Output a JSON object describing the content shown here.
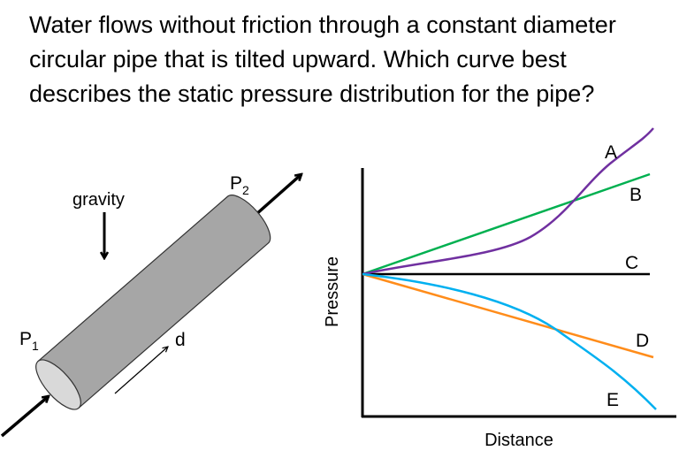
{
  "question": "Water flows without friction through a constant diameter circular pipe that is tilted upward. Which curve best describes the static pressure distribution for the pipe?",
  "pipe_diagram": {
    "gravity_label": "gravity",
    "p1_label": "P",
    "p1_sub": "1",
    "p2_label": "P",
    "p2_sub": "2",
    "distance_label": "d"
  },
  "chart": {
    "ylabel": "Pressure",
    "xlabel": "Distance",
    "curves": [
      {
        "label": "A",
        "color": "#7030a0",
        "trend": "increasing, curving upward"
      },
      {
        "label": "B",
        "color": "#00b050",
        "trend": "increasing linearly"
      },
      {
        "label": "C",
        "color": "#000000",
        "trend": "constant"
      },
      {
        "label": "D",
        "color": "#ff8c1a",
        "trend": "decreasing linearly"
      },
      {
        "label": "E",
        "color": "#00b0f0",
        "trend": "decreasing, curving downward"
      }
    ]
  }
}
